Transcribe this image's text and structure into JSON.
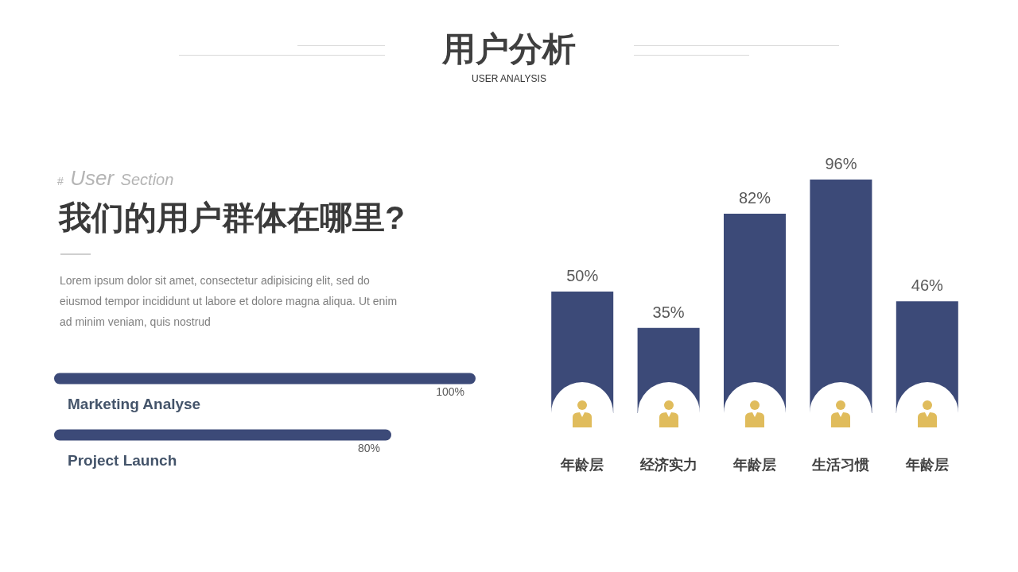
{
  "chart_data": [
    {
      "type": "other",
      "title": "用户分析",
      "subtitle": "USER ANALYSIS"
    },
    {
      "type": "other",
      "subtitle": "# User Section",
      "title": "我们的用户群体在哪里?",
      "annotations": [
        "Lorem ipsum dolor sit amet, consectetur adipisicing elit, sed do eiusmod tempor incididunt ut labore et dolore magna aliqua. Ut enim ad minim veniam, quis nostrud"
      ]
    },
    {
      "type": "bar",
      "orientation": "horizontal",
      "categories": [
        "Marketing Analyse",
        "Project Launch"
      ],
      "values": [
        100,
        80
      ],
      "value_labels": [
        "100%",
        "80%"
      ],
      "color": "#3c4a78"
    },
    {
      "type": "bar",
      "categories": [
        "年龄层",
        "经济实力",
        "年龄层",
        "生活习惯",
        "年龄层"
      ],
      "values": [
        50,
        35,
        82,
        96,
        46
      ],
      "value_labels": [
        "50%",
        "35%",
        "82%",
        "96%",
        "46%"
      ],
      "color": "#3c4a78"
    }
  ]
}
